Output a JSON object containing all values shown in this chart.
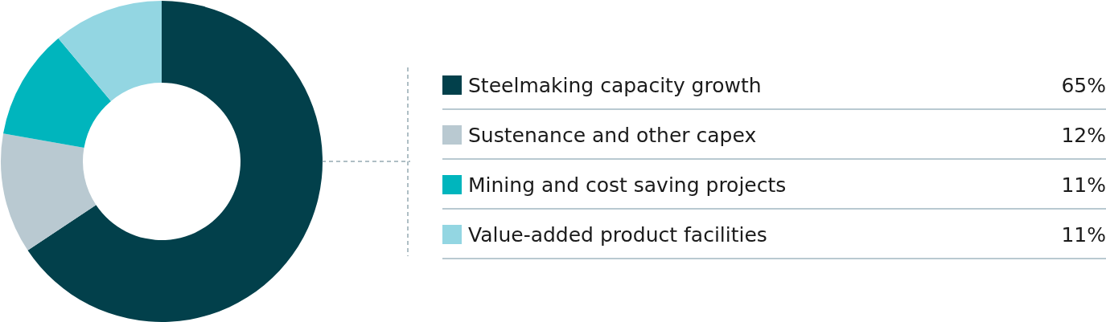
{
  "chart_data": {
    "type": "donut",
    "categories": [
      "Steelmaking capacity growth",
      "Sustenance and other capex",
      "Mining and cost saving projects",
      "Value-added product facilities"
    ],
    "values": [
      65,
      12,
      11,
      11
    ],
    "colors": [
      "#02404b",
      "#b9c9d1",
      "#00b5bd",
      "#93d6e2"
    ],
    "value_labels": [
      "65%",
      "12%",
      "11%",
      "11%"
    ],
    "legend": "right"
  }
}
